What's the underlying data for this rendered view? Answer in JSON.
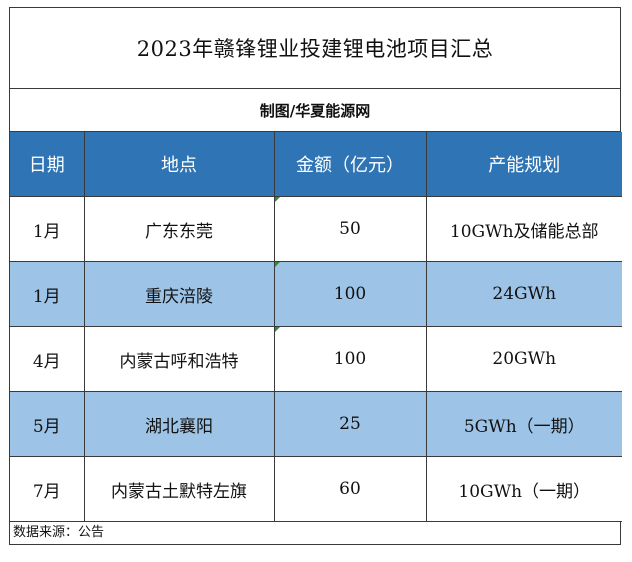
{
  "title": "2023年赣锋锂业投建锂电池项目汇总",
  "subtitle": "制图/华夏能源网",
  "table": {
    "headers": [
      "日期",
      "地点",
      "金额（亿元）",
      "产能规划"
    ],
    "rows": [
      {
        "date": "1月",
        "location": "广东东莞",
        "amount": "50",
        "capacity": "10GWh及储能总部"
      },
      {
        "date": "1月",
        "location": "重庆涪陵",
        "amount": "100",
        "capacity": "24GWh"
      },
      {
        "date": "4月",
        "location": "内蒙古呼和浩特",
        "amount": "100",
        "capacity": "20GWh"
      },
      {
        "date": "5月",
        "location": "湖北襄阳",
        "amount": "25",
        "capacity": "5GWh（一期）"
      },
      {
        "date": "7月",
        "location": "内蒙古土默特左旗",
        "amount": "60",
        "capacity": "10GWh（一期）"
      }
    ]
  },
  "source": "数据来源：公告",
  "colors": {
    "header_bg": "#2f75b5",
    "alt_row_bg": "#9dc3e6",
    "border": "#3a3a3a"
  }
}
